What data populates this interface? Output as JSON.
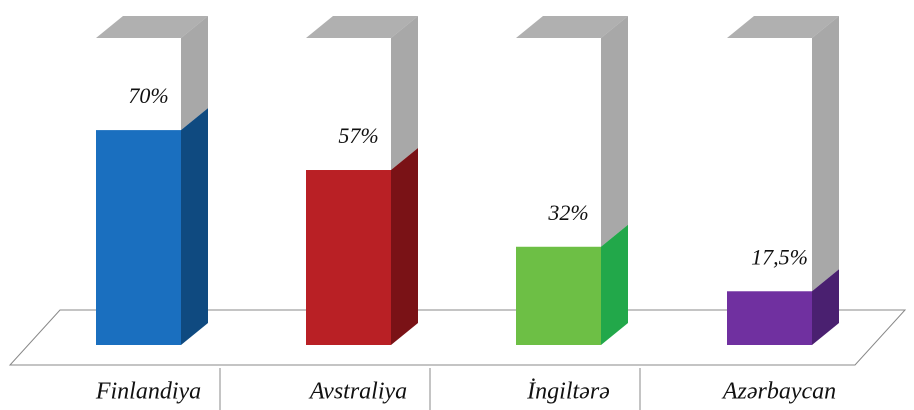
{
  "chart_data": {
    "type": "bar",
    "categories": [
      "Finlandiya",
      "Avstraliya",
      "İngiltərə",
      "Azərbaycan"
    ],
    "values": [
      70,
      57,
      32,
      17.5
    ],
    "value_labels": [
      "70%",
      "57%",
      "32%",
      "17,5%"
    ],
    "colors": [
      "#1a6fbf",
      "#b92025",
      "#6dbf45",
      "#7030a0"
    ],
    "side_colors": [
      "#0f4a80",
      "#7a1216",
      "#22a84a",
      "#4a2070"
    ],
    "ylim": [
      0,
      100
    ]
  }
}
